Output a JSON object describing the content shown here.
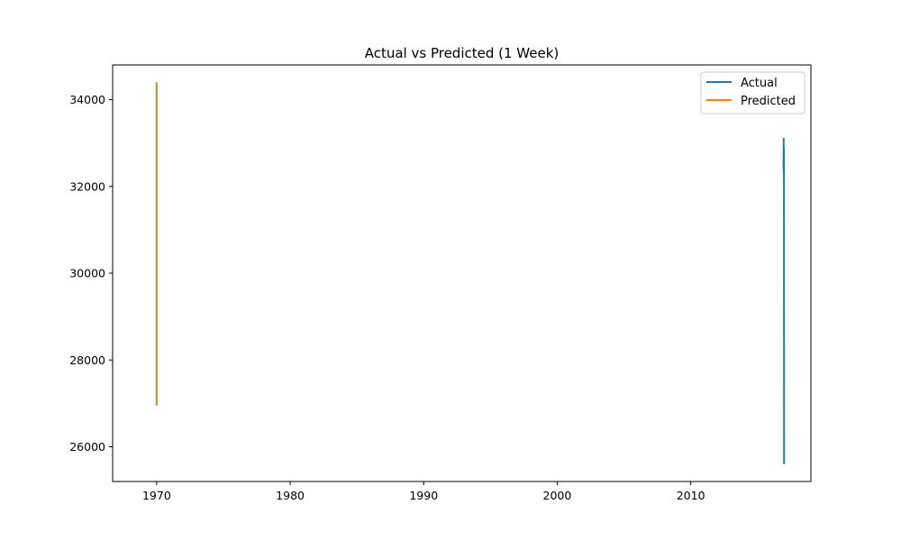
{
  "chart_data": {
    "type": "line",
    "title": "Actual vs Predicted (1 Week)",
    "xlabel": "",
    "ylabel": "",
    "xlim": [
      1966.7,
      2019.0
    ],
    "ylim": [
      25200,
      34800
    ],
    "x_ticks": [
      1970,
      1980,
      1990,
      2000,
      2010
    ],
    "y_ticks": [
      26000,
      28000,
      30000,
      32000,
      34000
    ],
    "grid": false,
    "legend_position": "top-right",
    "series": [
      {
        "name": "Actual",
        "color": "#1f77b4",
        "points": [
          {
            "x": 2016.95,
            "y": 32400
          },
          {
            "x": 2016.96,
            "y": 33100
          },
          {
            "x": 2016.97,
            "y": 32300
          },
          {
            "x": 2016.98,
            "y": 32900
          },
          {
            "x": 2016.99,
            "y": 25600
          }
        ]
      },
      {
        "name": "Predicted",
        "color": "#ff7f0e",
        "points": [
          {
            "x": 1970.0,
            "y": 26950
          },
          {
            "x": 1970.0,
            "y": 34400
          }
        ]
      }
    ]
  }
}
